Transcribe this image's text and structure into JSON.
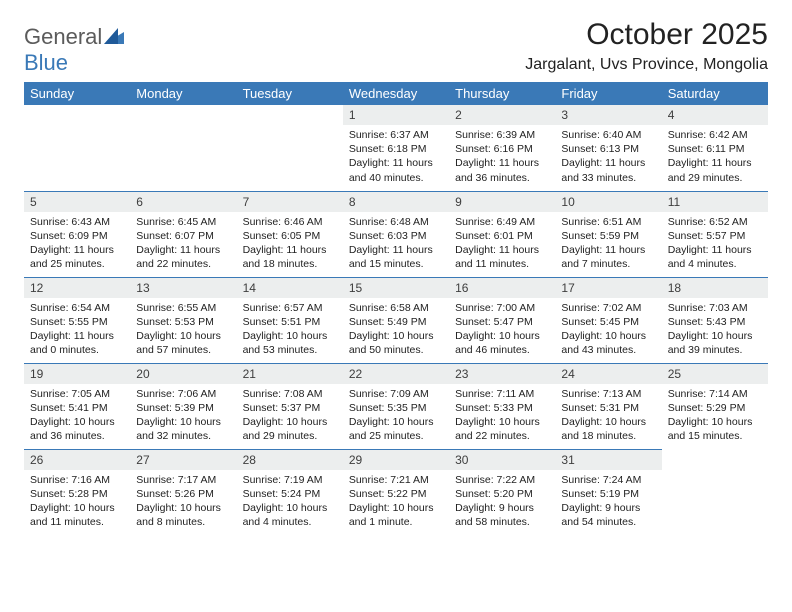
{
  "brand": {
    "name_part1": "General",
    "name_part2": "Blue",
    "text_color_gray": "#5b5b5b",
    "text_color_blue": "#3a79b7"
  },
  "title": "October 2025",
  "location": "Jargalant, Uvs Province, Mongolia",
  "header_bg": "#3a79b7",
  "header_fg": "#ffffff",
  "daynum_bg": "#eceeee",
  "rule_color": "#3a79b7",
  "weekdays": [
    "Sunday",
    "Monday",
    "Tuesday",
    "Wednesday",
    "Thursday",
    "Friday",
    "Saturday"
  ],
  "weeks": [
    [
      null,
      null,
      null,
      {
        "n": "1",
        "sr": "6:37 AM",
        "ss": "6:18 PM",
        "dl": "11 hours and 40 minutes."
      },
      {
        "n": "2",
        "sr": "6:39 AM",
        "ss": "6:16 PM",
        "dl": "11 hours and 36 minutes."
      },
      {
        "n": "3",
        "sr": "6:40 AM",
        "ss": "6:13 PM",
        "dl": "11 hours and 33 minutes."
      },
      {
        "n": "4",
        "sr": "6:42 AM",
        "ss": "6:11 PM",
        "dl": "11 hours and 29 minutes."
      }
    ],
    [
      {
        "n": "5",
        "sr": "6:43 AM",
        "ss": "6:09 PM",
        "dl": "11 hours and 25 minutes."
      },
      {
        "n": "6",
        "sr": "6:45 AM",
        "ss": "6:07 PM",
        "dl": "11 hours and 22 minutes."
      },
      {
        "n": "7",
        "sr": "6:46 AM",
        "ss": "6:05 PM",
        "dl": "11 hours and 18 minutes."
      },
      {
        "n": "8",
        "sr": "6:48 AM",
        "ss": "6:03 PM",
        "dl": "11 hours and 15 minutes."
      },
      {
        "n": "9",
        "sr": "6:49 AM",
        "ss": "6:01 PM",
        "dl": "11 hours and 11 minutes."
      },
      {
        "n": "10",
        "sr": "6:51 AM",
        "ss": "5:59 PM",
        "dl": "11 hours and 7 minutes."
      },
      {
        "n": "11",
        "sr": "6:52 AM",
        "ss": "5:57 PM",
        "dl": "11 hours and 4 minutes."
      }
    ],
    [
      {
        "n": "12",
        "sr": "6:54 AM",
        "ss": "5:55 PM",
        "dl": "11 hours and 0 minutes."
      },
      {
        "n": "13",
        "sr": "6:55 AM",
        "ss": "5:53 PM",
        "dl": "10 hours and 57 minutes."
      },
      {
        "n": "14",
        "sr": "6:57 AM",
        "ss": "5:51 PM",
        "dl": "10 hours and 53 minutes."
      },
      {
        "n": "15",
        "sr": "6:58 AM",
        "ss": "5:49 PM",
        "dl": "10 hours and 50 minutes."
      },
      {
        "n": "16",
        "sr": "7:00 AM",
        "ss": "5:47 PM",
        "dl": "10 hours and 46 minutes."
      },
      {
        "n": "17",
        "sr": "7:02 AM",
        "ss": "5:45 PM",
        "dl": "10 hours and 43 minutes."
      },
      {
        "n": "18",
        "sr": "7:03 AM",
        "ss": "5:43 PM",
        "dl": "10 hours and 39 minutes."
      }
    ],
    [
      {
        "n": "19",
        "sr": "7:05 AM",
        "ss": "5:41 PM",
        "dl": "10 hours and 36 minutes."
      },
      {
        "n": "20",
        "sr": "7:06 AM",
        "ss": "5:39 PM",
        "dl": "10 hours and 32 minutes."
      },
      {
        "n": "21",
        "sr": "7:08 AM",
        "ss": "5:37 PM",
        "dl": "10 hours and 29 minutes."
      },
      {
        "n": "22",
        "sr": "7:09 AM",
        "ss": "5:35 PM",
        "dl": "10 hours and 25 minutes."
      },
      {
        "n": "23",
        "sr": "7:11 AM",
        "ss": "5:33 PM",
        "dl": "10 hours and 22 minutes."
      },
      {
        "n": "24",
        "sr": "7:13 AM",
        "ss": "5:31 PM",
        "dl": "10 hours and 18 minutes."
      },
      {
        "n": "25",
        "sr": "7:14 AM",
        "ss": "5:29 PM",
        "dl": "10 hours and 15 minutes."
      }
    ],
    [
      {
        "n": "26",
        "sr": "7:16 AM",
        "ss": "5:28 PM",
        "dl": "10 hours and 11 minutes."
      },
      {
        "n": "27",
        "sr": "7:17 AM",
        "ss": "5:26 PM",
        "dl": "10 hours and 8 minutes."
      },
      {
        "n": "28",
        "sr": "7:19 AM",
        "ss": "5:24 PM",
        "dl": "10 hours and 4 minutes."
      },
      {
        "n": "29",
        "sr": "7:21 AM",
        "ss": "5:22 PM",
        "dl": "10 hours and 1 minute."
      },
      {
        "n": "30",
        "sr": "7:22 AM",
        "ss": "5:20 PM",
        "dl": "9 hours and 58 minutes."
      },
      {
        "n": "31",
        "sr": "7:24 AM",
        "ss": "5:19 PM",
        "dl": "9 hours and 54 minutes."
      },
      null
    ]
  ],
  "labels": {
    "sunrise": "Sunrise:",
    "sunset": "Sunset:",
    "daylight": "Daylight:"
  }
}
